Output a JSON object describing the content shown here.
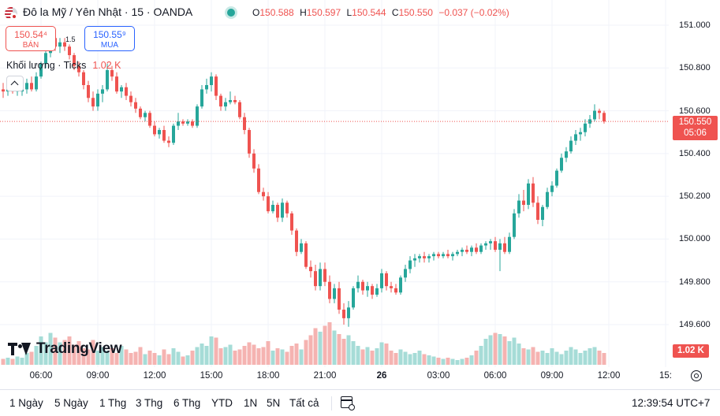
{
  "header": {
    "title": "Đô la Mỹ / Yên Nhật · 15 · OANDA",
    "ohlc": [
      {
        "k": "O",
        "v": "150.588"
      },
      {
        "k": "H",
        "v": "150.597"
      },
      {
        "k": "L",
        "v": "150.544"
      },
      {
        "k": "C",
        "v": "150.550"
      },
      {
        "k": "",
        "v": "−0.037 (−0.02%)"
      }
    ]
  },
  "trade": {
    "sell_price": "150.54⁴",
    "sell_label": "BÁN",
    "spread": "1.5",
    "buy_price": "150.55⁹",
    "buy_label": "MUA"
  },
  "volume_legend": {
    "label": "Khối lượng · Ticks",
    "value": "1.02 K"
  },
  "logo_text": "TradingView",
  "price_tag": {
    "price": "150.550",
    "countdown": "05:06"
  },
  "volume_tag": "1.02 K",
  "toolbar": {
    "timeframes": [
      "1 Ngày",
      "5 Ngày",
      "1 Thg",
      "3 Thg",
      "6 Thg",
      "YTD",
      "1N",
      "5N",
      "Tất cả"
    ],
    "clock": "12:39:54 UTC+7"
  },
  "colors": {
    "up": "#26a69a",
    "down": "#ef5350",
    "up_volume": "#a6dcd7",
    "down_volume": "#f5b3b1",
    "grid": "#f0f3fa"
  },
  "chart_data": {
    "type": "candlestick",
    "timeframe": "15",
    "ylim": [
      149.45,
      151.05
    ],
    "y_ticks": [
      "151.000",
      "150.800",
      "150.600",
      "150.400",
      "150.200",
      "150.000",
      "149.800",
      "149.600"
    ],
    "x_ticks": [
      {
        "label": "06:00",
        "index": 8,
        "bold": false
      },
      {
        "label": "09:00",
        "index": 20,
        "bold": false
      },
      {
        "label": "12:00",
        "index": 32,
        "bold": false
      },
      {
        "label": "15:00",
        "index": 44,
        "bold": false
      },
      {
        "label": "18:00",
        "index": 56,
        "bold": false
      },
      {
        "label": "21:00",
        "index": 68,
        "bold": false
      },
      {
        "label": "26",
        "index": 80,
        "bold": true
      },
      {
        "label": "03:00",
        "index": 92,
        "bold": false
      },
      {
        "label": "06:00",
        "index": 104,
        "bold": false
      },
      {
        "label": "09:00",
        "index": 116,
        "bold": false
      },
      {
        "label": "12:00",
        "index": 128,
        "bold": false
      },
      {
        "label": "15:",
        "index": 140,
        "bold": false
      }
    ],
    "last_price": 150.55,
    "volume_ylim": [
      0,
      4.0
    ],
    "candles": [
      [
        150.7,
        150.73,
        150.66,
        150.69,
        0.5
      ],
      [
        150.69,
        150.71,
        150.67,
        150.7,
        0.6
      ],
      [
        150.7,
        150.72,
        150.68,
        150.69,
        0.5
      ],
      [
        150.69,
        150.71,
        150.67,
        150.7,
        0.7
      ],
      [
        150.69,
        150.72,
        150.67,
        150.7,
        0.6
      ],
      [
        150.7,
        150.75,
        150.68,
        150.73,
        1.0
      ],
      [
        150.73,
        150.76,
        150.69,
        150.7,
        1.1
      ],
      [
        150.7,
        150.78,
        150.69,
        150.76,
        1.6
      ],
      [
        150.76,
        150.83,
        150.75,
        150.82,
        2.4
      ],
      [
        150.82,
        150.89,
        150.8,
        150.87,
        1.9
      ],
      [
        150.87,
        150.96,
        150.85,
        150.94,
        2.7
      ],
      [
        150.94,
        150.97,
        150.88,
        150.9,
        2.3
      ],
      [
        150.9,
        150.94,
        150.87,
        150.92,
        1.9
      ],
      [
        150.92,
        150.94,
        150.88,
        150.9,
        2.1
      ],
      [
        150.9,
        150.91,
        150.84,
        150.86,
        2.4
      ],
      [
        150.86,
        150.87,
        150.79,
        150.81,
        1.7
      ],
      [
        150.81,
        150.83,
        150.76,
        150.78,
        2.0
      ],
      [
        150.78,
        150.79,
        150.7,
        150.72,
        1.4
      ],
      [
        150.72,
        150.74,
        150.64,
        150.66,
        1.3
      ],
      [
        150.66,
        150.69,
        150.6,
        150.62,
        2.1
      ],
      [
        150.62,
        150.7,
        150.6,
        150.68,
        1.2
      ],
      [
        150.68,
        150.72,
        150.64,
        150.7,
        1.5
      ],
      [
        150.7,
        150.82,
        150.69,
        150.79,
        1.2
      ],
      [
        150.79,
        150.81,
        150.74,
        150.76,
        1.4
      ],
      [
        150.76,
        150.78,
        150.68,
        150.69,
        1.0
      ],
      [
        150.69,
        150.72,
        150.66,
        150.71,
        1.6
      ],
      [
        150.71,
        150.73,
        150.65,
        150.67,
        1.3
      ],
      [
        150.67,
        150.69,
        150.62,
        150.64,
        1.0
      ],
      [
        150.64,
        150.66,
        150.59,
        150.61,
        1.1
      ],
      [
        150.61,
        150.62,
        150.56,
        150.57,
        1.5
      ],
      [
        150.57,
        150.6,
        150.55,
        150.59,
        0.9
      ],
      [
        150.59,
        150.6,
        150.52,
        150.53,
        1.2
      ],
      [
        150.53,
        150.55,
        150.48,
        150.49,
        1.0
      ],
      [
        150.49,
        150.52,
        150.47,
        150.51,
        0.8
      ],
      [
        150.51,
        150.53,
        150.45,
        150.46,
        1.3
      ],
      [
        150.46,
        150.48,
        150.43,
        150.45,
        0.9
      ],
      [
        150.45,
        150.54,
        150.44,
        150.53,
        1.4
      ],
      [
        150.53,
        150.59,
        150.51,
        150.55,
        1.1
      ],
      [
        150.55,
        150.56,
        150.53,
        150.54,
        0.7
      ],
      [
        150.54,
        150.56,
        150.53,
        150.55,
        0.8
      ],
      [
        150.55,
        150.56,
        150.52,
        150.53,
        1.2
      ],
      [
        150.53,
        150.63,
        150.52,
        150.62,
        1.5
      ],
      [
        150.62,
        150.72,
        150.61,
        150.7,
        1.8
      ],
      [
        150.7,
        150.75,
        150.68,
        150.72,
        1.6
      ],
      [
        150.72,
        150.78,
        150.69,
        150.76,
        2.4
      ],
      [
        150.76,
        150.77,
        150.65,
        150.67,
        2.3
      ],
      [
        150.67,
        150.68,
        150.6,
        150.62,
        1.4
      ],
      [
        150.62,
        150.66,
        150.6,
        150.64,
        1.5
      ],
      [
        150.64,
        150.69,
        150.63,
        150.65,
        1.7
      ],
      [
        150.65,
        150.67,
        150.63,
        150.64,
        1.2
      ],
      [
        150.64,
        150.65,
        150.56,
        150.57,
        1.3
      ],
      [
        150.57,
        150.59,
        150.49,
        150.51,
        1.6
      ],
      [
        150.51,
        150.52,
        150.38,
        150.4,
        1.9
      ],
      [
        150.4,
        150.42,
        150.31,
        150.33,
        1.7
      ],
      [
        150.33,
        150.35,
        150.21,
        150.22,
        1.4
      ],
      [
        150.22,
        150.24,
        150.18,
        150.2,
        1.5
      ],
      [
        150.2,
        150.22,
        150.12,
        150.13,
        2.0
      ],
      [
        150.13,
        150.18,
        150.12,
        150.16,
        1.2
      ],
      [
        150.16,
        150.17,
        150.08,
        150.1,
        1.4
      ],
      [
        150.1,
        150.19,
        150.08,
        150.17,
        1.3
      ],
      [
        150.17,
        150.18,
        150.1,
        150.12,
        1.1
      ],
      [
        150.12,
        150.13,
        150.02,
        150.04,
        1.6
      ],
      [
        150.04,
        150.05,
        149.92,
        149.94,
        1.8
      ],
      [
        149.94,
        150.0,
        149.93,
        149.98,
        1.3
      ],
      [
        149.98,
        149.99,
        149.86,
        149.87,
        2.1
      ],
      [
        149.87,
        149.9,
        149.82,
        149.85,
        2.5
      ],
      [
        149.85,
        149.88,
        149.76,
        149.78,
        3.1
      ],
      [
        149.78,
        149.89,
        149.76,
        149.86,
        2.8
      ],
      [
        149.86,
        149.89,
        149.78,
        149.8,
        3.3
      ],
      [
        149.8,
        149.83,
        149.7,
        149.72,
        3.6
      ],
      [
        149.72,
        149.79,
        149.7,
        149.77,
        2.9
      ],
      [
        149.77,
        149.8,
        149.65,
        149.67,
        2.6
      ],
      [
        149.67,
        149.7,
        149.6,
        149.63,
        2.2
      ],
      [
        149.63,
        149.71,
        149.59,
        149.68,
        2.5
      ],
      [
        149.68,
        149.78,
        149.67,
        149.77,
        2.0
      ],
      [
        149.77,
        149.83,
        149.75,
        149.8,
        1.6
      ],
      [
        149.8,
        149.81,
        149.74,
        149.76,
        1.3
      ],
      [
        149.76,
        149.8,
        149.73,
        149.78,
        1.5
      ],
      [
        149.78,
        149.79,
        149.72,
        149.74,
        1.2
      ],
      [
        149.74,
        149.79,
        149.73,
        149.77,
        1.4
      ],
      [
        149.77,
        149.86,
        149.75,
        149.84,
        1.9
      ],
      [
        149.84,
        149.85,
        149.76,
        149.78,
        1.8
      ],
      [
        149.78,
        149.8,
        149.75,
        149.77,
        1.2
      ],
      [
        149.77,
        149.79,
        149.74,
        149.75,
        1.0
      ],
      [
        149.75,
        149.83,
        149.74,
        149.82,
        1.3
      ],
      [
        149.82,
        149.88,
        149.8,
        149.86,
        1.1
      ],
      [
        149.86,
        149.92,
        149.84,
        149.9,
        0.9
      ],
      [
        149.9,
        149.93,
        149.87,
        149.91,
        1.0
      ],
      [
        149.91,
        149.93,
        149.89,
        149.92,
        1.2
      ],
      [
        149.92,
        149.94,
        149.89,
        149.91,
        0.9
      ],
      [
        149.91,
        149.93,
        149.89,
        149.92,
        0.8
      ],
      [
        149.92,
        149.94,
        149.9,
        149.93,
        0.7
      ],
      [
        149.93,
        149.94,
        149.91,
        149.92,
        0.6
      ],
      [
        149.92,
        149.94,
        149.91,
        149.93,
        0.5
      ],
      [
        149.93,
        149.95,
        149.91,
        149.92,
        0.6
      ],
      [
        149.92,
        149.94,
        149.9,
        149.93,
        0.5
      ],
      [
        149.93,
        149.95,
        149.92,
        149.94,
        0.4
      ],
      [
        149.94,
        149.96,
        149.92,
        149.95,
        0.5
      ],
      [
        149.95,
        149.97,
        149.93,
        149.94,
        0.6
      ],
      [
        149.94,
        149.97,
        149.92,
        149.96,
        0.8
      ],
      [
        149.96,
        149.98,
        149.93,
        149.94,
        1.2
      ],
      [
        149.94,
        149.98,
        149.93,
        149.97,
        1.6
      ],
      [
        149.97,
        149.99,
        149.95,
        149.98,
        2.2
      ],
      [
        149.98,
        150.0,
        149.95,
        149.99,
        2.5
      ],
      [
        149.99,
        150.01,
        149.94,
        149.95,
        2.7
      ],
      [
        149.95,
        150.0,
        149.85,
        149.98,
        2.6
      ],
      [
        149.98,
        150.01,
        149.93,
        149.94,
        2.4
      ],
      [
        149.94,
        150.03,
        149.93,
        150.01,
        2.0
      ],
      [
        150.01,
        150.14,
        150.0,
        150.12,
        2.3
      ],
      [
        150.12,
        150.21,
        150.1,
        150.18,
        1.8
      ],
      [
        150.18,
        150.23,
        150.13,
        150.16,
        1.4
      ],
      [
        150.16,
        150.28,
        150.14,
        150.26,
        1.3
      ],
      [
        150.26,
        150.29,
        150.15,
        150.17,
        1.5
      ],
      [
        150.17,
        150.2,
        150.07,
        150.09,
        1.1
      ],
      [
        150.09,
        150.16,
        150.06,
        150.15,
        1.2
      ],
      [
        150.15,
        150.24,
        150.14,
        150.22,
        1.0
      ],
      [
        150.22,
        150.27,
        150.2,
        150.25,
        1.4
      ],
      [
        150.25,
        150.33,
        150.24,
        150.32,
        1.1
      ],
      [
        150.32,
        150.4,
        150.31,
        150.38,
        0.9
      ],
      [
        150.38,
        150.43,
        150.36,
        150.41,
        1.2
      ],
      [
        150.41,
        150.48,
        150.4,
        150.46,
        1.5
      ],
      [
        150.46,
        150.51,
        150.44,
        150.49,
        1.3
      ],
      [
        150.49,
        150.52,
        150.46,
        150.5,
        1.0
      ],
      [
        150.5,
        150.56,
        150.48,
        150.54,
        1.2
      ],
      [
        150.54,
        150.58,
        150.52,
        150.56,
        1.4
      ],
      [
        150.56,
        150.63,
        150.55,
        150.6,
        1.5
      ],
      [
        150.6,
        150.61,
        150.56,
        150.59,
        1.2
      ],
      [
        150.59,
        150.6,
        150.54,
        150.55,
        1.0
      ]
    ]
  }
}
